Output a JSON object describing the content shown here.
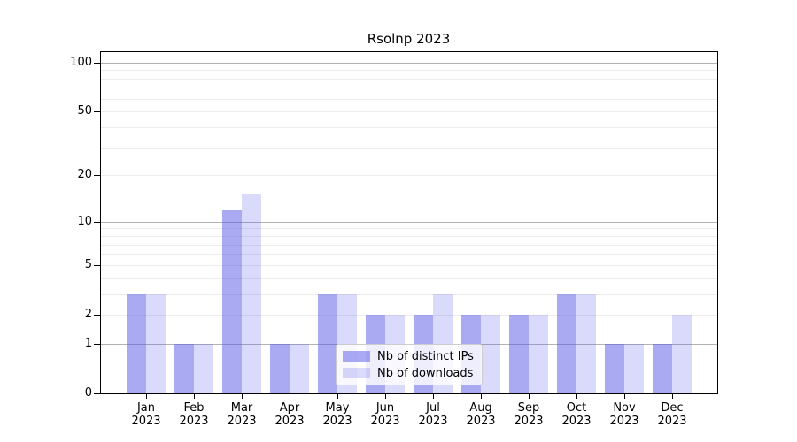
{
  "chart_data": {
    "type": "bar",
    "title": "Rsolnp 2023",
    "categories": [
      "Jan",
      "Feb",
      "Mar",
      "Apr",
      "May",
      "Jun",
      "Jul",
      "Aug",
      "Sep",
      "Oct",
      "Nov",
      "Dec"
    ],
    "year_label": "2023",
    "series": [
      {
        "name": "Nb of distinct IPs",
        "color": "rgba(85,85,230,0.5)",
        "values": [
          3,
          1,
          12,
          1,
          3,
          2,
          2,
          2,
          2,
          3,
          1,
          1
        ]
      },
      {
        "name": "Nb of downloads",
        "color": "rgba(85,85,230,0.22)",
        "values": [
          3,
          1,
          15,
          1,
          3,
          2,
          3,
          2,
          2,
          3,
          1,
          2
        ]
      }
    ],
    "xlabel": "",
    "ylabel": "",
    "ylim": [
      0,
      117
    ],
    "yscale": "log10(1+value)",
    "ytick_values": [
      0,
      1,
      2,
      5,
      10,
      20,
      50,
      100
    ],
    "major_grid_values": [
      1,
      10,
      100
    ],
    "minor_grid_values": [
      2,
      3,
      4,
      5,
      6,
      7,
      8,
      9,
      20,
      30,
      40,
      50,
      60,
      70,
      80,
      90
    ],
    "grid": true,
    "legend_position": "lower center"
  },
  "colors": {
    "major_grid": "#b3b3b3",
    "minor_grid": "#ececec",
    "axis": "#000000",
    "background": "#ffffff"
  }
}
